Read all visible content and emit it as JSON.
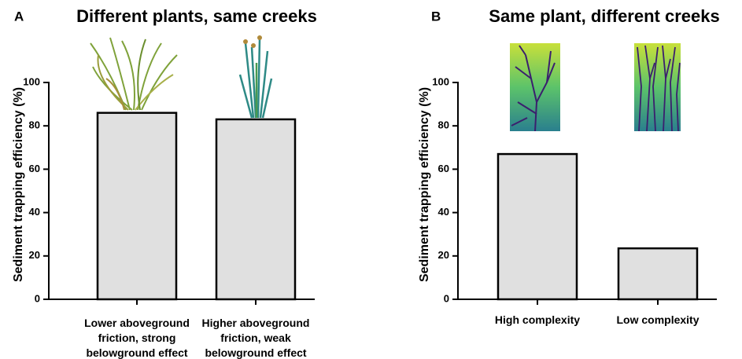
{
  "chart_data": [
    {
      "type": "bar",
      "panel_label": "A",
      "title": "Different plants, same creeks",
      "ylabel": "Sediment trapping efficiency (%)",
      "categories": [
        "Lower aboveground friction, strong belowground effect",
        "Higher aboveground friction, weak belowground effect"
      ],
      "values": [
        86,
        83
      ],
      "color": "#e0e0e0",
      "ylim": [
        0,
        100
      ],
      "yticks": [
        0,
        20,
        40,
        60,
        80,
        100
      ]
    },
    {
      "type": "bar",
      "panel_label": "B",
      "title": "Same plant, different creeks",
      "ylabel": "Sediment trapping efficiency (%)",
      "categories": [
        "High complexity",
        "Low complexity"
      ],
      "values": [
        67,
        23.5
      ],
      "color": "#e0e0e0",
      "ylim": [
        0,
        100
      ],
      "yticks": [
        0,
        20,
        40,
        60,
        80,
        100
      ]
    }
  ]
}
